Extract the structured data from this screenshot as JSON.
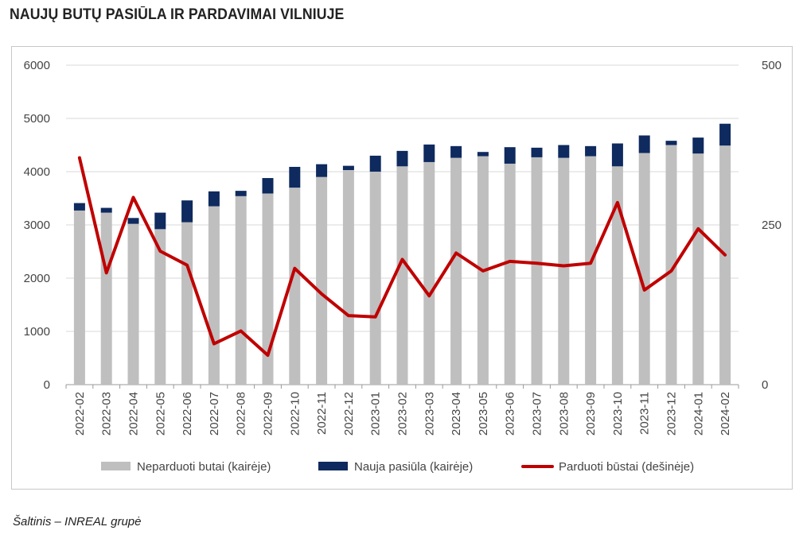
{
  "title": "NAUJŲ BUTŲ PASIŪLA IR PARDAVIMAI VILNIUJE",
  "source": "Šaltinis – INREAL grupė",
  "colors": {
    "unsold": "#bfbfbf",
    "new_supply": "#0e2a5e",
    "sold": "#c00000"
  },
  "chart_data": {
    "type": "bar",
    "stacked": true,
    "categories": [
      "2022-02",
      "2022-03",
      "2022-04",
      "2022-05",
      "2022-06",
      "2022-07",
      "2022-08",
      "2022-09",
      "2022-10",
      "2022-11",
      "2022-12",
      "2023-01",
      "2023-02",
      "2023-03",
      "2023-04",
      "2023-05",
      "2023-06",
      "2023-07",
      "2023-08",
      "2023-09",
      "2023-10",
      "2023-11",
      "2023-12",
      "2024-01",
      "2024-02"
    ],
    "series": [
      {
        "name": "Neparduoti butai (kairėje)",
        "type": "bar",
        "axis": "left",
        "values": [
          3270,
          3230,
          3020,
          2920,
          3050,
          3350,
          3540,
          3590,
          3700,
          3900,
          4030,
          4000,
          4100,
          4180,
          4260,
          4290,
          4150,
          4270,
          4260,
          4290,
          4100,
          4350,
          4500,
          4340,
          4490
        ]
      },
      {
        "name": "Nauja pasiūla (kairėje)",
        "type": "bar",
        "axis": "left",
        "values": [
          140,
          90,
          110,
          310,
          410,
          280,
          100,
          290,
          390,
          240,
          80,
          300,
          290,
          330,
          220,
          80,
          310,
          180,
          240,
          190,
          430,
          330,
          80,
          300,
          410
        ]
      },
      {
        "name": "Parduoti būstai (dešinėje)",
        "type": "line",
        "axis": "right",
        "values": [
          355,
          175,
          293,
          209,
          187,
          64,
          84,
          46,
          182,
          142,
          108,
          106,
          196,
          139,
          206,
          178,
          193,
          190,
          186,
          190,
          285,
          148,
          178,
          244,
          203
        ]
      }
    ],
    "y_left": {
      "min": 0,
      "max": 6000,
      "ticks": [
        "0",
        "1000",
        "2000",
        "3000",
        "4000",
        "5000",
        "6000"
      ]
    },
    "y_right": {
      "min": 0,
      "max": 500,
      "ticks": [
        "0",
        "250",
        "500"
      ]
    },
    "grid": true,
    "legend_position": "bottom"
  }
}
